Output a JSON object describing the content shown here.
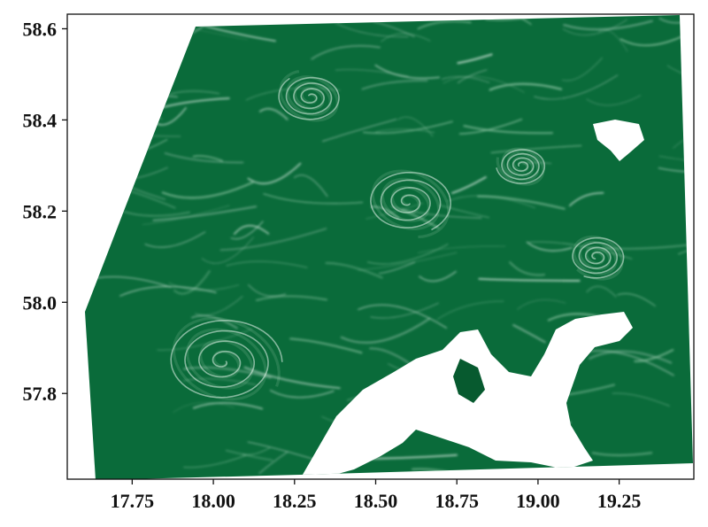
{
  "map": {
    "colors": {
      "water": "#0a6b3a",
      "water_dark": "#075a2f",
      "bloom": "#e9f6ee",
      "bloom_mid": "#9fd2b2",
      "land": "#ffffff",
      "frame": "#111111"
    },
    "x_axis": {
      "unit": "degrees longitude",
      "range": [
        17.55,
        19.48
      ],
      "ticks": [
        {
          "value": 17.75,
          "label": "17.75"
        },
        {
          "value": 18.0,
          "label": "18.00"
        },
        {
          "value": 18.25,
          "label": "18.25"
        },
        {
          "value": 18.5,
          "label": "18.50"
        },
        {
          "value": 18.75,
          "label": "18.75"
        },
        {
          "value": 19.0,
          "label": "19.00"
        },
        {
          "value": 19.25,
          "label": "19.25"
        }
      ]
    },
    "y_axis": {
      "unit": "degrees latitude",
      "range": [
        57.612,
        58.632
      ],
      "ticks": [
        {
          "value": 57.8,
          "label": "57.8"
        },
        {
          "value": 58.0,
          "label": "58.0"
        },
        {
          "value": 58.2,
          "label": "58.2"
        },
        {
          "value": 58.4,
          "label": "58.4"
        },
        {
          "value": 58.6,
          "label": "58.6"
        }
      ]
    },
    "eddies": [
      {
        "lon": 18.03,
        "lat": 57.87,
        "size_deg": 0.3
      },
      {
        "lon": 18.6,
        "lat": 58.22,
        "size_deg": 0.22
      },
      {
        "lon": 19.18,
        "lat": 58.1,
        "size_deg": 0.14
      },
      {
        "lon": 18.95,
        "lat": 58.3,
        "size_deg": 0.12
      },
      {
        "lon": 18.3,
        "lat": 58.45,
        "size_deg": 0.16
      }
    ]
  }
}
